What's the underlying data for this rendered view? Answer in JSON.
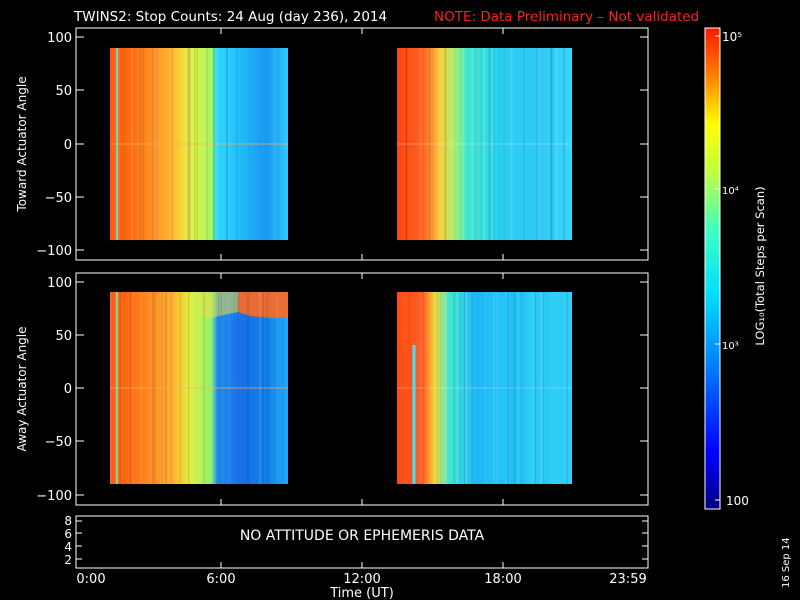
{
  "title": {
    "main": "TWINS2: Stop Counts: 24 Aug (day 236), 2014",
    "note": "NOTE: Data Preliminary – Not validated",
    "note_color": "#ff2020"
  },
  "panels": {
    "top_ylabel": "Toward Actuator Angle",
    "bottom_ylabel": "Away Actuator Angle",
    "angle_ticks": [
      "100",
      "50",
      "0",
      "−50",
      "−100"
    ],
    "status_ticks": [
      "8",
      "6",
      "4",
      "2"
    ],
    "status_message": "NO ATTITUDE OR EPHEMERIS DATA"
  },
  "xaxis": {
    "title": "Time (UT)",
    "ticks": [
      "0:00",
      "6:00",
      "12:00",
      "18:00",
      "23:59"
    ]
  },
  "colorbar": {
    "label": "LOG₁₀(Total Steps per Scan)",
    "ticks": [
      "10⁵",
      "10⁴",
      "10³",
      "100"
    ]
  },
  "date_stamp": "16 Sep 14",
  "chart_data": [
    {
      "type": "heatmap",
      "panel": "Toward Actuator Angle",
      "x_unit": "hours UT",
      "xlim": [
        0,
        24
      ],
      "ylim": [
        -100,
        100
      ],
      "y_range_covered": [
        -90,
        90
      ],
      "data_intervals_hours": [
        [
          1.0,
          8.8
        ],
        [
          13.5,
          21.0
        ]
      ],
      "color_scale": "log10",
      "zlim": [
        100,
        100000
      ],
      "color_levels_by_time": [
        {
          "hours": [
            1.0,
            2.5
          ],
          "level": "~1e5 (red)"
        },
        {
          "hours": [
            2.5,
            3.9
          ],
          "level": "~5e4 (orange)"
        },
        {
          "hours": [
            3.9,
            5.8
          ],
          "level": "~1.5e4 (yellow/green)"
        },
        {
          "hours": [
            5.8,
            8.8
          ],
          "level": "~1.5e3 (cyan/blue)"
        },
        {
          "hours": [
            13.5,
            14.5
          ],
          "level": "~1e5 (red)"
        },
        {
          "hours": [
            14.5,
            15.7
          ],
          "level": "~3e4 (yellow)"
        },
        {
          "hours": [
            15.7,
            21.0
          ],
          "level": "~3e3 (cyan)"
        }
      ]
    },
    {
      "type": "heatmap",
      "panel": "Away Actuator Angle",
      "x_unit": "hours UT",
      "xlim": [
        0,
        24
      ],
      "ylim": [
        -100,
        100
      ],
      "y_range_covered": [
        -90,
        90
      ],
      "data_intervals_hours": [
        [
          1.0,
          8.8
        ],
        [
          13.5,
          21.0
        ]
      ],
      "color_scale": "log10",
      "zlim": [
        100,
        100000
      ],
      "color_levels_by_time": [
        {
          "hours": [
            1.0,
            2.5
          ],
          "level": "~1e5 (red)"
        },
        {
          "hours": [
            2.5,
            3.9
          ],
          "level": "~5e4 (orange)"
        },
        {
          "hours": [
            3.9,
            5.8
          ],
          "level": "~1.5e4 (yellow/green)"
        },
        {
          "hours": [
            5.8,
            8.8
          ],
          "level": "~1e3 (blue)"
        },
        {
          "hours": [
            13.5,
            14.5
          ],
          "level": "~1e5 (red)"
        },
        {
          "hours": [
            14.5,
            15.7
          ],
          "level": "~2e4 (yellow)"
        },
        {
          "hours": [
            15.7,
            21.0
          ],
          "level": "~3e3 (cyan)"
        }
      ]
    }
  ]
}
